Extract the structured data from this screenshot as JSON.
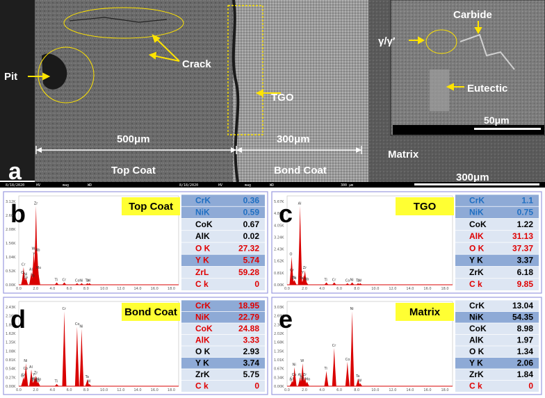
{
  "panel_a": {
    "letter": "a",
    "annotations": {
      "pit": "Pit",
      "crack": "Crack",
      "tgo": "TGO",
      "carbide": "Carbide",
      "gamma": "γ/γ′",
      "eutectic": "Eutectic",
      "matrix": "Matrix",
      "top_coat": "Top Coat",
      "bond_coat": "Bond Coat",
      "dim_top": "500μm",
      "dim_bond": "300μm",
      "inset_scale": "50μm",
      "scale": "300μm"
    },
    "info_bar_1": {
      "datetime": "8/18/2020",
      "time": "2:15:25 PM",
      "hv_label": "HV",
      "hv": "30.00 kV",
      "mag_label": "mag",
      "mag": "500 x",
      "wd_label": "WD",
      "wd": "10.0 mm"
    },
    "info_bar_2": {
      "datetime": "8/18/2020",
      "time": "2:16:09 PM",
      "hv_label": "HV",
      "hv": "30.00 kV",
      "mag_label": "mag",
      "mag": "500 x",
      "wd_label": "WD",
      "wd": "10.0 mm",
      "scale": "300 μm",
      "lab": "CFSI"
    }
  },
  "spectra": [
    {
      "letter": "b",
      "title": "Top Coat",
      "yticks": [
        "3.12K",
        "2.60K",
        "2.08K",
        "1.56K",
        "1.04K",
        "0.52K",
        "0.00K"
      ],
      "xticks": [
        "0.0",
        "2.0",
        "4.0",
        "6.0",
        "8.0",
        "10.0",
        "12.0",
        "14.0",
        "16.0",
        "18.0"
      ],
      "peaks": [
        {
          "label": "Zr",
          "x": 2.05,
          "h": 0.98
        },
        {
          "label": "Nb",
          "x": 2.2,
          "h": 0.4
        },
        {
          "label": "W",
          "x": 1.78,
          "h": 0.42
        },
        {
          "label": "Y",
          "x": 1.92,
          "h": 0.35
        },
        {
          "label": "Mo",
          "x": 2.3,
          "h": 0.18
        },
        {
          "label": "Al",
          "x": 1.49,
          "h": 0.16
        },
        {
          "label": "Cr",
          "x": 0.57,
          "h": 0.22
        },
        {
          "label": "O",
          "x": 0.52,
          "h": 0.12
        },
        {
          "label": "Ni",
          "x": 0.85,
          "h": 0.1
        },
        {
          "label": "Co",
          "x": 0.78,
          "h": 0.06
        },
        {
          "label": "Ta",
          "x": 1.7,
          "h": 0.08
        },
        {
          "label": "Ti",
          "x": 4.51,
          "h": 0.03
        },
        {
          "label": "Cr",
          "x": 5.41,
          "h": 0.03
        },
        {
          "label": "Co",
          "x": 6.93,
          "h": 0.02
        },
        {
          "label": "Ni",
          "x": 7.47,
          "h": 0.02
        },
        {
          "label": "Ta",
          "x": 8.15,
          "h": 0.02
        },
        {
          "label": "W",
          "x": 8.4,
          "h": 0.02
        }
      ],
      "table": [
        {
          "el": "CrK",
          "val": "0.36",
          "hl": true,
          "color": "#1f6fc2"
        },
        {
          "el": "NiK",
          "val": "0.59",
          "hl": true,
          "color": "#1f6fc2"
        },
        {
          "el": "CoK",
          "val": "0.67",
          "hl": false,
          "color": "#000000"
        },
        {
          "el": "AlK",
          "val": "0.02",
          "hl": false,
          "color": "#000000"
        },
        {
          "el": "O K",
          "val": "27.32",
          "hl": false,
          "color": "#e00000"
        },
        {
          "el": "Y K",
          "val": "5.74",
          "hl": true,
          "color": "#e00000"
        },
        {
          "el": "ZrL",
          "val": "59.28",
          "hl": false,
          "color": "#e00000"
        },
        {
          "el": "C k",
          "val": "0",
          "hl": false,
          "color": "#e00000"
        }
      ]
    },
    {
      "letter": "c",
      "title": "TGO",
      "yticks": [
        "5.67K",
        "4.86K",
        "4.05K",
        "3.24K",
        "2.43K",
        "1.62K",
        "0.81K",
        "0.00K"
      ],
      "xticks": [
        "0.0",
        "2.0",
        "4.0",
        "6.0",
        "8.0",
        "10.0",
        "12.0",
        "14.0",
        "16.0",
        "18.0"
      ],
      "peaks": [
        {
          "label": "Al",
          "x": 1.49,
          "h": 0.98
        },
        {
          "label": "O",
          "x": 0.52,
          "h": 0.35
        },
        {
          "label": "Cr",
          "x": 0.57,
          "h": 0.15
        },
        {
          "label": "Zr",
          "x": 2.05,
          "h": 0.18
        },
        {
          "label": "Y",
          "x": 1.92,
          "h": 0.12
        },
        {
          "label": "Ni",
          "x": 0.85,
          "h": 0.06
        },
        {
          "label": "Co",
          "x": 0.78,
          "h": 0.05
        },
        {
          "label": "Ta",
          "x": 1.7,
          "h": 0.05
        },
        {
          "label": "Nb",
          "x": 2.2,
          "h": 0.04
        },
        {
          "label": "Ti",
          "x": 4.51,
          "h": 0.03
        },
        {
          "label": "Cr",
          "x": 5.41,
          "h": 0.03
        },
        {
          "label": "Co",
          "x": 6.93,
          "h": 0.02
        },
        {
          "label": "Ni",
          "x": 7.47,
          "h": 0.03
        },
        {
          "label": "Ta",
          "x": 8.15,
          "h": 0.02
        },
        {
          "label": "W",
          "x": 8.4,
          "h": 0.02
        }
      ],
      "table": [
        {
          "el": "CrK",
          "val": "1.1",
          "hl": true,
          "color": "#1f6fc2"
        },
        {
          "el": "NiK",
          "val": "0.75",
          "hl": true,
          "color": "#1f6fc2"
        },
        {
          "el": "CoK",
          "val": "1.22",
          "hl": false,
          "color": "#000000"
        },
        {
          "el": "AlK",
          "val": "31.13",
          "hl": false,
          "color": "#e00000"
        },
        {
          "el": "O K",
          "val": "37.37",
          "hl": false,
          "color": "#e00000"
        },
        {
          "el": "Y K",
          "val": "3.37",
          "hl": true,
          "color": "#000000"
        },
        {
          "el": "ZrK",
          "val": "6.18",
          "hl": false,
          "color": "#000000"
        },
        {
          "el": "C k",
          "val": "9.85",
          "hl": false,
          "color": "#e00000"
        }
      ]
    },
    {
      "letter": "d",
      "title": "Bond Coat",
      "yticks": [
        "2.43K",
        "2.16K",
        "1.89K",
        "1.62K",
        "1.35K",
        "1.08K",
        "0.81K",
        "0.54K",
        "0.27K",
        "0.00K"
      ],
      "xticks": [
        "0.0",
        "2.0",
        "4.0",
        "6.0",
        "8.0",
        "10.0",
        "12.0",
        "14.0",
        "16.0",
        "18.0"
      ],
      "peaks": [
        {
          "label": "Cr",
          "x": 5.41,
          "h": 0.98
        },
        {
          "label": "Co",
          "x": 6.93,
          "h": 0.78
        },
        {
          "label": "Ni",
          "x": 7.47,
          "h": 0.75
        },
        {
          "label": "Ni",
          "x": 0.85,
          "h": 0.3
        },
        {
          "label": "Co",
          "x": 0.78,
          "h": 0.2
        },
        {
          "label": "Al",
          "x": 1.49,
          "h": 0.22
        },
        {
          "label": "Cr",
          "x": 0.57,
          "h": 0.12
        },
        {
          "label": "O",
          "x": 0.52,
          "h": 0.1
        },
        {
          "label": "Zr",
          "x": 2.05,
          "h": 0.14
        },
        {
          "label": "Y",
          "x": 1.92,
          "h": 0.12
        },
        {
          "label": "W",
          "x": 1.78,
          "h": 0.07
        },
        {
          "label": "Mo",
          "x": 2.3,
          "h": 0.06
        },
        {
          "label": "Ta",
          "x": 1.7,
          "h": 0.05
        },
        {
          "label": "Nb",
          "x": 2.2,
          "h": 0.04
        },
        {
          "label": "Ti",
          "x": 4.51,
          "h": 0.03
        },
        {
          "label": "Ta",
          "x": 8.15,
          "h": 0.09
        },
        {
          "label": "W",
          "x": 8.4,
          "h": 0.03
        }
      ],
      "table": [
        {
          "el": "CrK",
          "val": "18.95",
          "hl": true,
          "color": "#e00000"
        },
        {
          "el": "NiK",
          "val": "22.79",
          "hl": true,
          "color": "#e00000"
        },
        {
          "el": "CoK",
          "val": "24.88",
          "hl": false,
          "color": "#e00000"
        },
        {
          "el": "AlK",
          "val": "3.33",
          "hl": false,
          "color": "#e00000"
        },
        {
          "el": "O K",
          "val": "2.93",
          "hl": false,
          "color": "#000000"
        },
        {
          "el": "Y K",
          "val": "3.74",
          "hl": true,
          "color": "#000000"
        },
        {
          "el": "ZrK",
          "val": "5.75",
          "hl": false,
          "color": "#000000"
        },
        {
          "el": "C k",
          "val": "0",
          "hl": false,
          "color": "#e00000"
        }
      ]
    },
    {
      "letter": "e",
      "title": "Matrix",
      "yticks": [
        "3.03K",
        "2.69K",
        "2.36K",
        "2.02K",
        "1.68K",
        "1.35K",
        "1.01K",
        "0.67K",
        "0.34K",
        "0.00K"
      ],
      "xticks": [
        "0.0",
        "2.0",
        "4.0",
        "6.0",
        "8.0",
        "10.0",
        "12.0",
        "14.0",
        "16.0",
        "18.0"
      ],
      "peaks": [
        {
          "label": "Ni",
          "x": 7.47,
          "h": 0.98
        },
        {
          "label": "Co",
          "x": 6.93,
          "h": 0.32
        },
        {
          "label": "Cr",
          "x": 5.41,
          "h": 0.5
        },
        {
          "label": "Ni",
          "x": 0.85,
          "h": 0.25
        },
        {
          "label": "Co",
          "x": 0.78,
          "h": 0.12
        },
        {
          "label": "W",
          "x": 1.78,
          "h": 0.3
        },
        {
          "label": "Ti",
          "x": 4.51,
          "h": 0.2
        },
        {
          "label": "Al",
          "x": 1.49,
          "h": 0.12
        },
        {
          "label": "Zr",
          "x": 2.05,
          "h": 0.12
        },
        {
          "label": "Ta",
          "x": 1.7,
          "h": 0.08
        },
        {
          "label": "Mo",
          "x": 2.3,
          "h": 0.06
        },
        {
          "label": "Y",
          "x": 1.92,
          "h": 0.05
        },
        {
          "label": "Cr",
          "x": 0.57,
          "h": 0.07
        },
        {
          "label": "O",
          "x": 0.52,
          "h": 0.05
        },
        {
          "label": "Ta",
          "x": 8.15,
          "h": 0.1
        },
        {
          "label": "W",
          "x": 8.4,
          "h": 0.04
        }
      ],
      "table": [
        {
          "el": "CrK",
          "val": "13.04",
          "hl": false,
          "color": "#000000"
        },
        {
          "el": "NiK",
          "val": "54.35",
          "hl": true,
          "color": "#000000"
        },
        {
          "el": "CoK",
          "val": "8.98",
          "hl": false,
          "color": "#000000"
        },
        {
          "el": "AlK",
          "val": "1.97",
          "hl": false,
          "color": "#000000"
        },
        {
          "el": "O K",
          "val": "1.34",
          "hl": false,
          "color": "#000000"
        },
        {
          "el": "Y K",
          "val": "2.06",
          "hl": true,
          "color": "#000000"
        },
        {
          "el": "ZrK",
          "val": "1.84",
          "hl": false,
          "color": "#000000"
        },
        {
          "el": "C k",
          "val": "0",
          "hl": false,
          "color": "#e00000"
        }
      ]
    }
  ],
  "colors": {
    "spectrum": "#d90000",
    "highlight": "#8eaad6",
    "table_bg": "#dde6f3",
    "title_bg": "#ffff33",
    "panel_border": "#9a9adf",
    "annotation_arrow": "#ffe400"
  }
}
